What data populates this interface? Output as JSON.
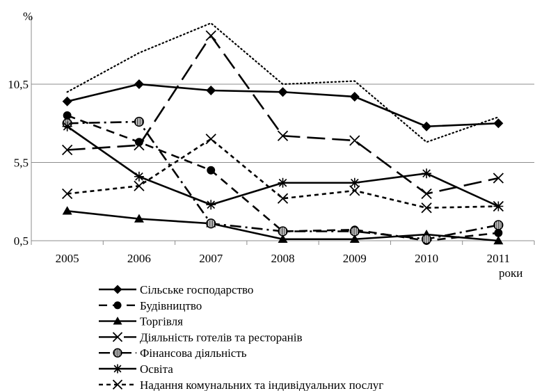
{
  "chart_data": {
    "type": "line",
    "title": "",
    "ylabel": "%",
    "xlabel": "роки",
    "categories": [
      "2005",
      "2006",
      "2007",
      "2008",
      "2009",
      "2010",
      "2011"
    ],
    "yticks": [
      "0,5",
      "5,5",
      "10,5"
    ],
    "ylim": [
      0.5,
      15
    ],
    "grid": true,
    "legend_position": "bottom",
    "series": [
      {
        "name": "Сільське господарство",
        "values": [
          9.4,
          10.5,
          10.1,
          10.0,
          9.7,
          7.8,
          8.0
        ],
        "marker": "diamond",
        "dash": "solid"
      },
      {
        "name": "Будівництво",
        "values": [
          8.5,
          6.8,
          5.0,
          1.1,
          1.2,
          0.5,
          1.0
        ],
        "marker": "circle",
        "dash": "dash"
      },
      {
        "name": "Торгівля",
        "values": [
          2.4,
          1.9,
          1.6,
          0.6,
          0.6,
          0.9,
          0.5
        ],
        "marker": "triangle",
        "dash": "solid"
      },
      {
        "name": "Діяльність готелів та ресторанів",
        "values": [
          6.3,
          6.6,
          13.6,
          7.2,
          6.9,
          3.5,
          4.5
        ],
        "marker": "x",
        "dash": "longdash"
      },
      {
        "name": "Фінансова діяльність",
        "values": [
          8.0,
          8.1,
          1.6,
          1.1,
          1.1,
          0.6,
          1.5
        ],
        "marker": "circle-striped",
        "dash": "dashdot"
      },
      {
        "name": "Освіта",
        "values": [
          7.8,
          4.6,
          2.8,
          4.2,
          4.2,
          4.8,
          2.7
        ],
        "marker": "asterisk",
        "dash": "solid"
      },
      {
        "name": "Надання комунальних та індивідуальних послуг",
        "values": [
          3.5,
          4.0,
          7.0,
          3.2,
          3.7,
          2.6,
          2.7
        ],
        "marker": "x",
        "dash": "shortdash"
      },
      {
        "name": "",
        "values": [
          10.0,
          12.5,
          14.4,
          10.5,
          10.7,
          6.8,
          8.4
        ],
        "marker": "none",
        "dash": "dotted"
      }
    ]
  }
}
